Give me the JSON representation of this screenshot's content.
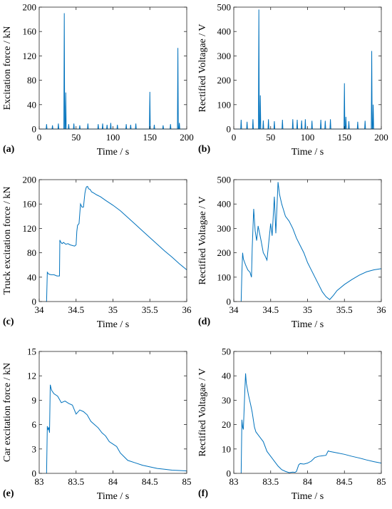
{
  "chart_data": [
    {
      "panel_label": "(a)",
      "type": "line",
      "xlabel": "Time / s",
      "ylabel": "Excitation force / kN",
      "xlim": [
        0,
        200
      ],
      "ylim": [
        0,
        200
      ],
      "xticks": [
        0,
        50,
        100,
        150,
        200
      ],
      "yticks": [
        0,
        40,
        80,
        120,
        160,
        200
      ],
      "color": "#0072BD",
      "spikes": [
        [
          10,
          8
        ],
        [
          18,
          6
        ],
        [
          26,
          9
        ],
        [
          34,
          190
        ],
        [
          36,
          60
        ],
        [
          40,
          8
        ],
        [
          47,
          9
        ],
        [
          55,
          6
        ],
        [
          66,
          9
        ],
        [
          80,
          8
        ],
        [
          86,
          9
        ],
        [
          92,
          7
        ],
        [
          97,
          10
        ],
        [
          106,
          7
        ],
        [
          118,
          8
        ],
        [
          124,
          7
        ],
        [
          131,
          9
        ],
        [
          150,
          61
        ],
        [
          156,
          7
        ],
        [
          168,
          6
        ],
        [
          178,
          8
        ],
        [
          188,
          133
        ],
        [
          190,
          10
        ]
      ]
    },
    {
      "panel_label": "(b)",
      "type": "line",
      "xlabel": "Time / s",
      "ylabel": "Rectified Voltagae / V",
      "xlim": [
        0,
        200
      ],
      "ylim": [
        0,
        500
      ],
      "xticks": [
        0,
        50,
        100,
        150,
        200
      ],
      "yticks": [
        0,
        100,
        200,
        300,
        400,
        500
      ],
      "color": "#0072BD",
      "spikes": [
        [
          10,
          38
        ],
        [
          18,
          30
        ],
        [
          26,
          40
        ],
        [
          34,
          490
        ],
        [
          36,
          138
        ],
        [
          40,
          35
        ],
        [
          47,
          40
        ],
        [
          55,
          32
        ],
        [
          66,
          38
        ],
        [
          80,
          40
        ],
        [
          86,
          38
        ],
        [
          92,
          35
        ],
        [
          97,
          40
        ],
        [
          106,
          34
        ],
        [
          118,
          38
        ],
        [
          124,
          34
        ],
        [
          131,
          40
        ],
        [
          150,
          188
        ],
        [
          152,
          50
        ],
        [
          156,
          32
        ],
        [
          168,
          30
        ],
        [
          178,
          34
        ],
        [
          187,
          320
        ],
        [
          189,
          100
        ]
      ]
    },
    {
      "panel_label": "(c)",
      "type": "line",
      "xlabel": "Time / s",
      "ylabel": "Truck excitation force / kN",
      "xlim": [
        34,
        36
      ],
      "ylim": [
        0,
        200
      ],
      "xticks": [
        34,
        34.5,
        35,
        35.5,
        36
      ],
      "xtick_labels": [
        "34",
        "34.5",
        "35",
        "35.5",
        "36"
      ],
      "yticks": [
        0,
        40,
        80,
        120,
        160,
        200
      ],
      "color": "#0072BD",
      "x": [
        34.09,
        34.1,
        34.11,
        34.13,
        34.16,
        34.2,
        34.24,
        34.27,
        34.275,
        34.28,
        34.29,
        34.31,
        34.33,
        34.36,
        34.39,
        34.42,
        34.45,
        34.48,
        34.5,
        34.51,
        34.52,
        34.54,
        34.56,
        34.58,
        34.6,
        34.62,
        34.63,
        34.64,
        34.655,
        34.67,
        34.69,
        34.71,
        34.74,
        34.78,
        34.83,
        34.9,
        35.0,
        35.1,
        35.2,
        35.3,
        35.4,
        35.5,
        35.6,
        35.7,
        35.8,
        35.9,
        36.0
      ],
      "y": [
        0,
        0,
        48,
        45,
        44,
        44,
        42,
        42,
        42,
        101,
        98,
        95,
        97,
        94,
        95,
        93,
        92,
        91,
        93,
        115,
        125,
        128,
        160,
        155,
        155,
        178,
        184,
        188,
        189,
        185,
        184,
        180,
        178,
        175,
        172,
        166,
        158,
        149,
        138,
        127,
        116,
        105,
        94,
        83,
        73,
        62,
        52
      ]
    },
    {
      "panel_label": "(d)",
      "type": "line",
      "xlabel": "Time / s",
      "ylabel": "Rectified Voltagae / V",
      "xlim": [
        34,
        36
      ],
      "ylim": [
        0,
        500
      ],
      "xticks": [
        34,
        34.5,
        35,
        35.5,
        36
      ],
      "xtick_labels": [
        "34",
        "34.5",
        "35",
        "35.5",
        "36"
      ],
      "yticks": [
        0,
        100,
        200,
        300,
        400,
        500
      ],
      "color": "#0072BD",
      "x": [
        34.1,
        34.11,
        34.12,
        34.13,
        34.16,
        34.19,
        34.22,
        34.24,
        34.25,
        34.27,
        34.29,
        34.31,
        34.33,
        34.35,
        34.37,
        34.4,
        34.42,
        34.45,
        34.5,
        34.52,
        34.55,
        34.57,
        34.6,
        34.62,
        34.65,
        34.67,
        34.7,
        34.75,
        34.8,
        34.85,
        34.9,
        34.95,
        35.0,
        35.05,
        35.1,
        35.15,
        35.2,
        35.25,
        35.3,
        35.35,
        35.4,
        35.5,
        35.6,
        35.7,
        35.8,
        35.9,
        36.0
      ],
      "y": [
        0,
        120,
        200,
        175,
        150,
        130,
        120,
        100,
        220,
        380,
        290,
        250,
        310,
        280,
        250,
        200,
        190,
        170,
        320,
        270,
        430,
        280,
        490,
        440,
        400,
        380,
        350,
        330,
        300,
        260,
        230,
        200,
        160,
        130,
        100,
        70,
        40,
        20,
        8,
        25,
        45,
        70,
        90,
        108,
        122,
        130,
        135
      ]
    },
    {
      "panel_label": "(e)",
      "type": "line",
      "xlabel": "Time / s",
      "ylabel": "Car excitation force / kN",
      "xlim": [
        83,
        85
      ],
      "ylim": [
        0,
        15
      ],
      "xticks": [
        83,
        83.5,
        84,
        84.5,
        85
      ],
      "xtick_labels": [
        "83",
        "83.5",
        "84",
        "84.5",
        "85"
      ],
      "yticks": [
        0,
        3,
        6,
        9,
        12,
        15
      ],
      "color": "#0072BD",
      "x": [
        83.1,
        83.11,
        83.12,
        83.13,
        83.14,
        83.15,
        83.16,
        83.17,
        83.2,
        83.25,
        83.3,
        83.35,
        83.4,
        83.45,
        83.5,
        83.55,
        83.6,
        83.65,
        83.7,
        83.75,
        83.8,
        83.85,
        83.9,
        83.95,
        84.0,
        84.05,
        84.1,
        84.2,
        84.3,
        84.4,
        84.5,
        84.6,
        84.7,
        84.8,
        84.9,
        85.0
      ],
      "y": [
        0,
        5.8,
        5.4,
        5.6,
        5.0,
        10.9,
        10.5,
        10.2,
        9.8,
        9.5,
        8.7,
        8.9,
        8.6,
        8.4,
        7.3,
        7.8,
        7.6,
        7.2,
        6.4,
        6.0,
        5.6,
        5.0,
        4.6,
        3.9,
        3.6,
        3.3,
        2.5,
        1.6,
        1.3,
        1.0,
        0.8,
        0.6,
        0.5,
        0.4,
        0.35,
        0.3
      ]
    },
    {
      "panel_label": "(f)",
      "type": "line",
      "xlabel": "Time / s",
      "ylabel": "Rectified Voltagae / V",
      "xlim": [
        83,
        85
      ],
      "ylim": [
        0,
        50
      ],
      "xticks": [
        83,
        83.5,
        84,
        84.5,
        85
      ],
      "xtick_labels": [
        "83",
        "83.5",
        "84",
        "84.5",
        "85"
      ],
      "yticks": [
        0,
        10,
        20,
        30,
        40,
        50
      ],
      "color": "#0072BD",
      "x": [
        83.1,
        83.11,
        83.12,
        83.13,
        83.15,
        83.16,
        83.17,
        83.2,
        83.23,
        83.25,
        83.28,
        83.3,
        83.35,
        83.4,
        83.45,
        83.5,
        83.55,
        83.6,
        83.65,
        83.7,
        83.75,
        83.8,
        83.83,
        83.85,
        83.88,
        83.9,
        83.95,
        84.0,
        84.05,
        84.1,
        84.15,
        84.2,
        84.25,
        84.28,
        84.3,
        84.4,
        84.5,
        84.6,
        84.7,
        84.8,
        84.9,
        85.0
      ],
      "y": [
        0,
        22,
        19,
        18,
        34,
        41,
        37,
        32,
        28,
        25,
        19,
        17,
        15,
        13,
        9,
        7,
        5,
        3,
        1.5,
        0.8,
        0.3,
        0.5,
        0.4,
        0.8,
        3.5,
        4.0,
        3.8,
        4.2,
        5.0,
        6.5,
        7.0,
        7.2,
        7.4,
        9.2,
        9.0,
        8.4,
        7.8,
        7.0,
        6.3,
        5.5,
        4.8,
        4.2
      ]
    }
  ]
}
